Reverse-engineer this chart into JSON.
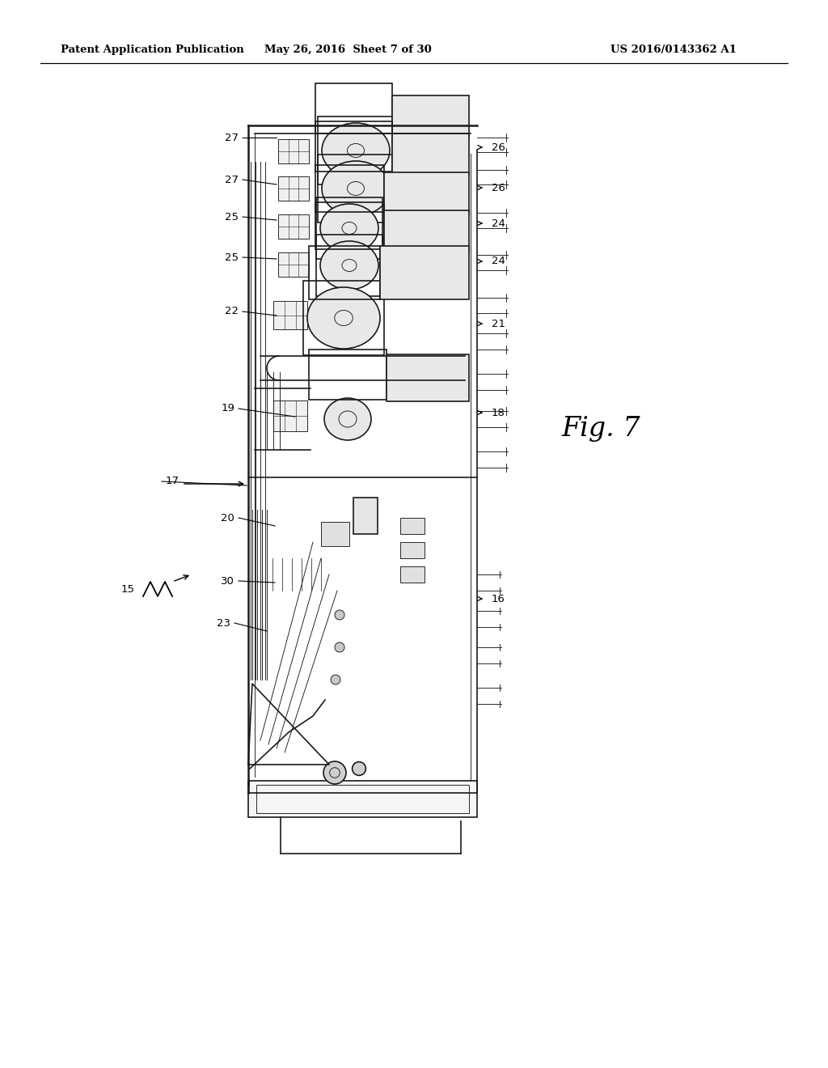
{
  "bg_color": "#ffffff",
  "header_left": "Patent Application Publication",
  "header_mid": "May 26, 2016  Sheet 7 of 30",
  "header_right": "US 2016/0143362 A1",
  "fig_label": "Fig. 7",
  "line_color": "#1a1a1a",
  "lw_main": 1.2,
  "lw_thin": 0.65,
  "lw_thick": 1.8,
  "label_fontsize": 9.5,
  "fig_label_fontsize": 24,
  "header_fontsize": 9.5
}
